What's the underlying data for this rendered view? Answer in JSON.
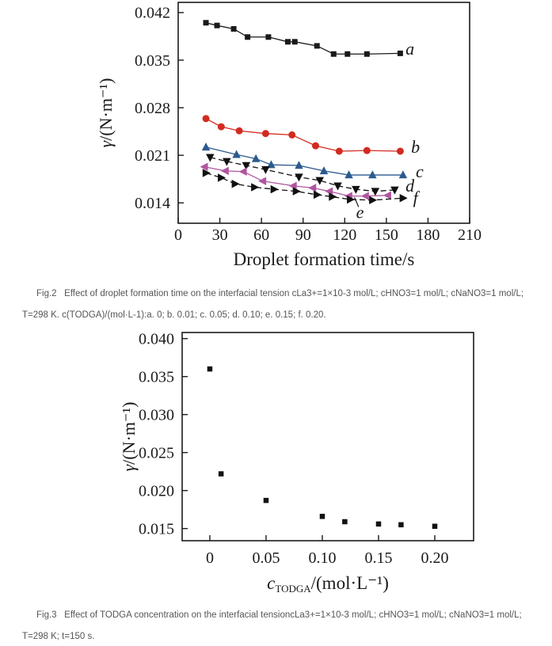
{
  "page": {
    "background": "#ffffff"
  },
  "fig2": {
    "caption": "Fig.2   Effect of droplet formation time on the interfacial tension cLa3+=1×10-3 mol/L; cHNO3=1 mol/L; cNaNO3=1 mol/L; T=298 K. c(TODGA)/(mol·L-1):a. 0; b. 0.01; c. 0.05; d. 0.10; e. 0.15; f. 0.20."
  },
  "fig3": {
    "caption": "Fig.3   Effect of TODGA concentration on the interfacial tensioncLa3+=1×10-3 mol/L; cHNO3=1 mol/L; cNaNO3=1 mol/L; T=298 K; t=150 s."
  },
  "chart_data": [
    {
      "type": "line",
      "title": "",
      "xlabel": "Droplet formation time/s",
      "ylabel_parts": {
        "italic": "γ",
        "rest": "/(N·m⁻¹)"
      },
      "xlim": [
        0,
        210
      ],
      "ylim": [
        0.011,
        0.0435
      ],
      "x_ticks": [
        0,
        30,
        60,
        90,
        120,
        150,
        180,
        210
      ],
      "x_tick_labels": [
        "0",
        "30",
        "60",
        "90",
        "120",
        "150",
        "180",
        "210"
      ],
      "y_ticks": [
        0.014,
        0.021,
        0.028,
        0.035,
        0.042
      ],
      "y_tick_labels": [
        "0.014",
        "0.021",
        "0.028",
        "0.035",
        "0.042"
      ],
      "grid": false,
      "legend_position": "none",
      "series": [
        {
          "name": "a",
          "color": "#1a1a1a",
          "marker": "square",
          "size": 7,
          "line": "solid",
          "x": [
            20,
            28,
            40,
            50,
            65,
            79,
            84,
            100,
            112,
            122,
            136,
            160
          ],
          "y": [
            0.0405,
            0.0401,
            0.0396,
            0.0384,
            0.0384,
            0.0377,
            0.0377,
            0.0371,
            0.0359,
            0.0359,
            0.0359,
            0.036
          ]
        },
        {
          "name": "b",
          "color": "#d22b20",
          "marker": "circle",
          "size": 9,
          "line": "solid",
          "x": [
            20,
            31,
            44,
            63,
            82,
            99,
            116,
            136,
            160
          ],
          "y": [
            0.0264,
            0.0252,
            0.0246,
            0.0242,
            0.024,
            0.0224,
            0.0216,
            0.0217,
            0.0216
          ]
        },
        {
          "name": "c",
          "color": "#2b5a8e",
          "marker": "triangle-up",
          "size": 10,
          "line": "solid",
          "x": [
            20,
            42,
            56,
            67,
            87,
            105,
            123,
            140,
            162
          ],
          "y": [
            0.0222,
            0.0211,
            0.0205,
            0.0196,
            0.0195,
            0.0187,
            0.0181,
            0.0181,
            0.0181
          ]
        },
        {
          "name": "d",
          "color": "#111111",
          "marker": "triangle-down",
          "size": 10,
          "line": "dashed",
          "x": [
            23,
            35,
            49,
            63,
            87,
            102,
            115,
            128,
            142,
            156
          ],
          "y": [
            0.0207,
            0.0201,
            0.0195,
            0.0189,
            0.0178,
            0.0173,
            0.0165,
            0.016,
            0.0157,
            0.0159
          ]
        },
        {
          "name": "e",
          "color": "#b0569f",
          "marker": "triangle-left",
          "size": 10,
          "line": "solid",
          "x": [
            19,
            34,
            47,
            61,
            83,
            97,
            109,
            123,
            135,
            151
          ],
          "y": [
            0.0193,
            0.0187,
            0.0186,
            0.0172,
            0.0165,
            0.0162,
            0.0157,
            0.015,
            0.015,
            0.0151
          ]
        },
        {
          "name": "f",
          "color": "#111111",
          "marker": "triangle-right",
          "size": 10,
          "line": "dashed",
          "x": [
            20,
            31,
            41,
            55,
            69,
            85,
            100,
            111,
            124,
            140,
            162
          ],
          "y": [
            0.0184,
            0.0177,
            0.0168,
            0.0163,
            0.016,
            0.0157,
            0.0152,
            0.0149,
            0.0145,
            0.0144,
            0.0147
          ]
        }
      ],
      "annotations": [
        {
          "text": "a",
          "x": 167,
          "y": 0.0366
        },
        {
          "text": "b",
          "x": 171,
          "y": 0.0222
        },
        {
          "text": "c",
          "x": 174,
          "y": 0.0186
        },
        {
          "text": "d",
          "x": 167,
          "y": 0.0165
        },
        {
          "text": "f",
          "x": 171,
          "y": 0.0147
        },
        {
          "text": "e",
          "x": 131,
          "y": 0.0126,
          "leader": {
            "x1": 130,
            "y1": 0.0134,
            "x2": 127,
            "y2": 0.0148
          }
        }
      ]
    },
    {
      "type": "scatter",
      "title": "",
      "xlabel_parts": {
        "italic": "c",
        "sub": "TODGA",
        "rest": "/(mol·L⁻¹)"
      },
      "ylabel_parts": {
        "italic": "γ",
        "rest": "/(N·m⁻¹)"
      },
      "xlim": [
        -0.0246,
        0.2345
      ],
      "ylim": [
        0.0134,
        0.0408
      ],
      "x_ticks": [
        0,
        0.05,
        0.1,
        0.15,
        0.2
      ],
      "x_tick_labels": [
        "0",
        "0.05",
        "0.10",
        "0.15",
        "0.20"
      ],
      "y_ticks": [
        0.015,
        0.02,
        0.025,
        0.03,
        0.035,
        0.04
      ],
      "y_tick_labels": [
        "0.015",
        "0.020",
        "0.025",
        "0.030",
        "0.035",
        "0.040"
      ],
      "grid": false,
      "legend_position": "none",
      "series": [
        {
          "name": "gamma-vs-cTODGA",
          "color": "#111111",
          "marker": "square",
          "size": 6.5,
          "line": "none",
          "x": [
            0,
            0.01,
            0.05,
            0.1,
            0.12,
            0.15,
            0.17,
            0.2
          ],
          "y": [
            0.036,
            0.0222,
            0.0187,
            0.0166,
            0.0159,
            0.0156,
            0.0155,
            0.0153
          ]
        }
      ],
      "annotations": []
    }
  ]
}
